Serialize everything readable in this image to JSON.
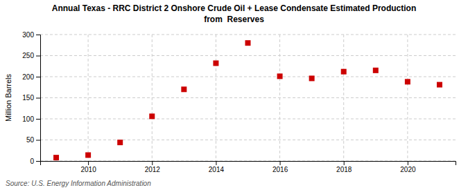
{
  "chart_data": {
    "type": "scatter",
    "title": "Annual Texas - RRC District 2 Onshore Crude Oil + Lease Condensate Estimated Production",
    "subtitle": "from  Reserves",
    "ylabel": "Million Barrels",
    "annotations": [
      "Source: U.S. Energy Information Administration"
    ],
    "x": [
      2009,
      2010,
      2011,
      2012,
      2013,
      2014,
      2015,
      2016,
      2017,
      2018,
      2019,
      2020,
      2021
    ],
    "values": [
      8,
      14,
      44,
      106,
      170,
      232,
      280,
      201,
      196,
      212,
      215,
      188,
      181
    ],
    "color": "#cc0000",
    "marker": "square",
    "xlim": [
      2008.5,
      2021.5
    ],
    "xticks": [
      2010,
      2012,
      2014,
      2016,
      2018,
      2020
    ],
    "ylim": [
      0,
      300
    ],
    "yticks": [
      0,
      50,
      100,
      150,
      200,
      250,
      300
    ],
    "grid": true
  }
}
